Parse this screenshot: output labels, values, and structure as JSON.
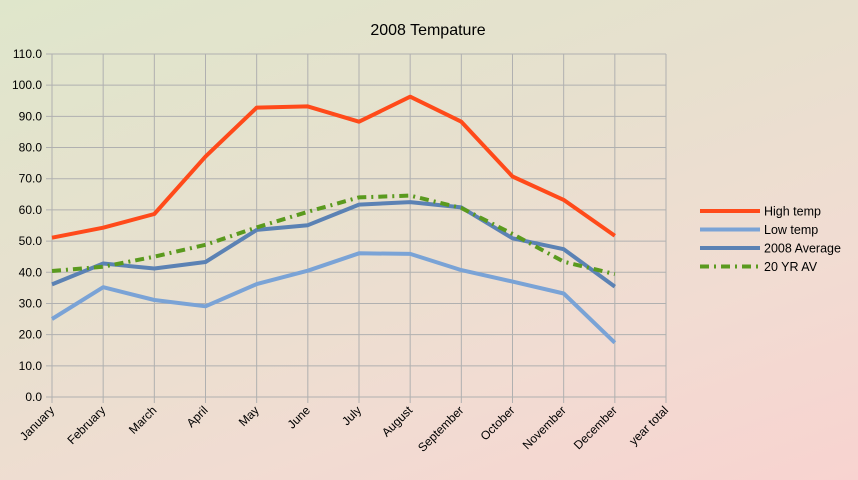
{
  "chart_data": {
    "type": "line",
    "title": "2008 Tempature",
    "xlabel": "",
    "ylabel": "",
    "categories": [
      "January",
      "February",
      "March",
      "April",
      "May",
      "June",
      "July",
      "August",
      "September",
      "October",
      "November",
      "December",
      "year total"
    ],
    "ylim": [
      0,
      110
    ],
    "yticks": [
      0,
      10,
      20,
      30,
      40,
      50,
      60,
      70,
      80,
      90,
      100,
      110
    ],
    "ytick_labels": [
      "0.0",
      "10.0",
      "20.0",
      "30.0",
      "40.0",
      "50.0",
      "60.0",
      "70.0",
      "80.0",
      "90.0",
      "100.0",
      "110.0"
    ],
    "grid": true,
    "legend_position": "right",
    "series": [
      {
        "name": "High temp",
        "color": "#ff4a1a",
        "style": "solid",
        "values": [
          51.1,
          54.3,
          58.7,
          77.1,
          92.8,
          93.2,
          88.3,
          96.3,
          88.3,
          70.7,
          63.2,
          51.7,
          null
        ]
      },
      {
        "name": "Low temp",
        "color": "#7aa3d6",
        "style": "solid",
        "values": [
          25.0,
          35.2,
          31.1,
          29.1,
          36.2,
          40.5,
          46.1,
          45.9,
          40.7,
          37.0,
          33.2,
          17.4,
          null
        ]
      },
      {
        "name": "2008 Average",
        "color": "#5b82b4",
        "style": "solid",
        "values": [
          36.1,
          42.8,
          41.2,
          43.3,
          53.6,
          55.1,
          61.7,
          62.5,
          60.8,
          50.9,
          47.4,
          35.4,
          null
        ]
      },
      {
        "name": "20 YR AV",
        "color": "#5a9a1e",
        "style": "dash-dot",
        "values": [
          40.4,
          41.8,
          45.0,
          48.8,
          54.4,
          59.4,
          64.0,
          64.6,
          60.6,
          52.3,
          43.4,
          39.4,
          null
        ]
      }
    ]
  }
}
